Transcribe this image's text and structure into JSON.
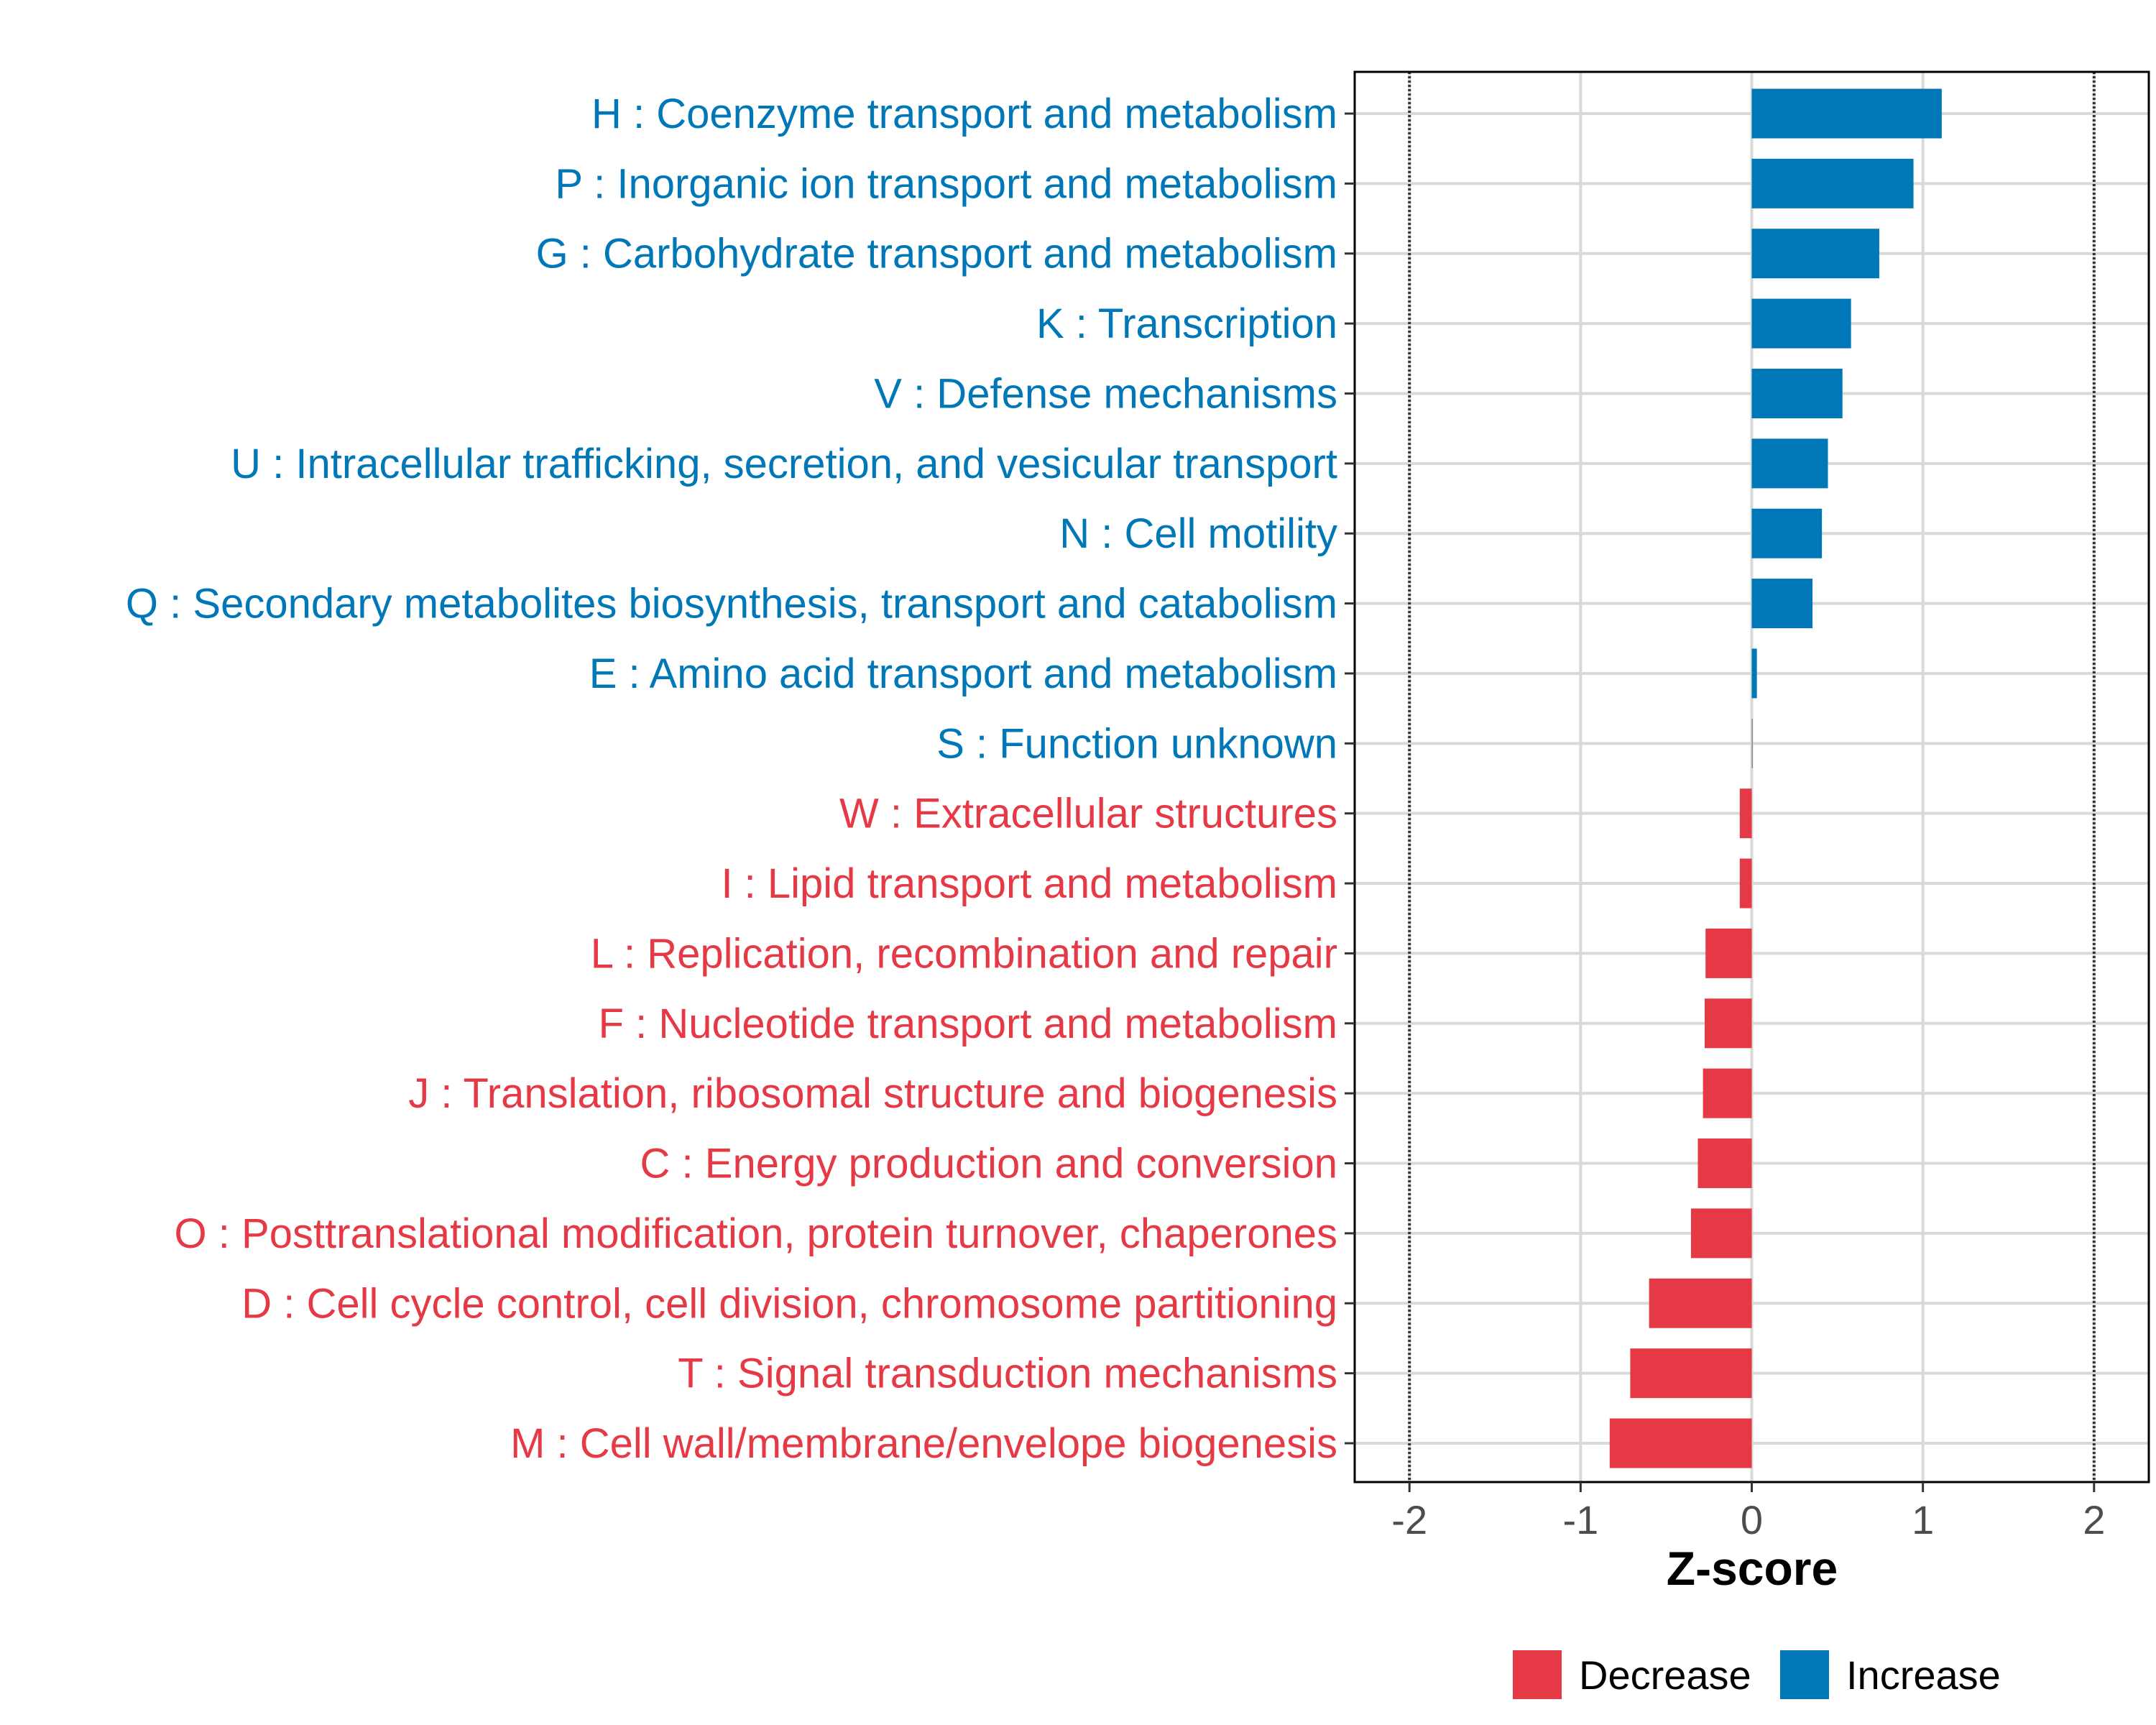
{
  "chart_data": {
    "type": "bar",
    "orientation": "horizontal",
    "title": "",
    "xlabel": "Z-score",
    "ylabel": "",
    "xlim": [
      -2.32,
      2.32
    ],
    "xticks": [
      -2,
      -1,
      0,
      1,
      2
    ],
    "xtick_labels": [
      "-2",
      "-1",
      "0",
      "1",
      "2"
    ],
    "reference_lines": [
      -2,
      2
    ],
    "grid": true,
    "colors": {
      "Increase": "#0077b6",
      "Decrease": "#e63946"
    },
    "categories": [
      "H : Coenzyme transport and metabolism",
      "P : Inorganic ion transport and metabolism",
      "G : Carbohydrate transport and metabolism",
      "K : Transcription",
      "V : Defense mechanisms",
      "U : Intracellular trafficking, secretion, and vesicular transport",
      "N : Cell motility",
      "Q : Secondary metabolites biosynthesis, transport and catabolism",
      "E : Amino acid transport and metabolism",
      "S : Function unknown",
      "W : Extracellular structures",
      "I : Lipid transport and metabolism",
      "L : Replication, recombination and repair",
      "F : Nucleotide transport and metabolism",
      "J : Translation, ribosomal structure and biogenesis",
      "C : Energy production and conversion",
      "O : Posttranslational modification, protein turnover, chaperones",
      "D : Cell cycle control, cell division, chromosome partitioning",
      "T : Signal transduction mechanisms",
      "M : Cell wall/membrane/envelope biogenesis"
    ],
    "values": [
      1.11,
      0.945,
      0.745,
      0.58,
      0.53,
      0.445,
      0.41,
      0.355,
      0.03,
      0.0,
      -0.07,
      -0.07,
      -0.27,
      -0.275,
      -0.285,
      -0.315,
      -0.355,
      -0.6,
      -0.71,
      -0.83
    ],
    "groups": [
      "Increase",
      "Increase",
      "Increase",
      "Increase",
      "Increase",
      "Increase",
      "Increase",
      "Increase",
      "Increase",
      "Increase",
      "Decrease",
      "Decrease",
      "Decrease",
      "Decrease",
      "Decrease",
      "Decrease",
      "Decrease",
      "Decrease",
      "Decrease",
      "Decrease"
    ],
    "legend": {
      "position": "bottom",
      "entries": [
        "Decrease",
        "Increase"
      ]
    }
  }
}
